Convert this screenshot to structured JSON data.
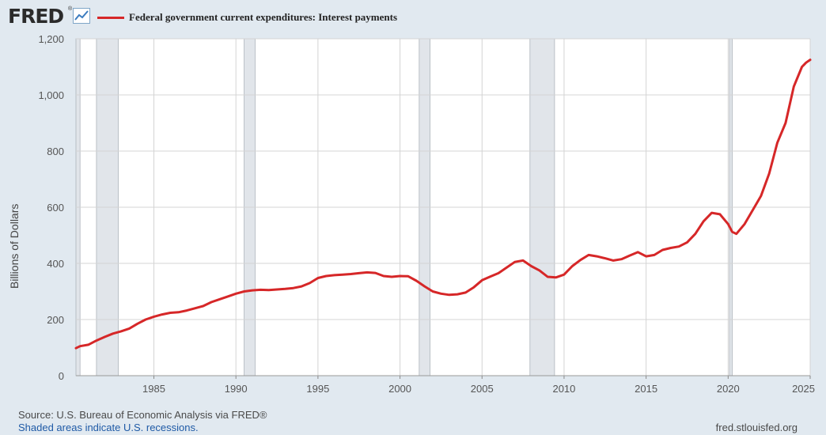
{
  "header": {
    "logo_text": "FRED",
    "logo_reg": "®",
    "logo_icon": "chart-line-icon",
    "series_color": "#d62728"
  },
  "footer": {
    "source": "Source: U.S. Bureau of Economic Analysis via FRED®",
    "note": "Shaded areas indicate U.S. recessions.",
    "site": "fred.stlouisfed.org"
  },
  "chart_data": {
    "type": "line",
    "ylabel": "Billions of Dollars",
    "ylim": [
      0,
      1200
    ],
    "xlim": [
      1980.25,
      2025.0
    ],
    "yticks": [
      0,
      200,
      400,
      600,
      800,
      1000,
      1200
    ],
    "ytick_labels": [
      "0",
      "200",
      "400",
      "600",
      "800",
      "1,000",
      "1,200"
    ],
    "xticks": [
      1985,
      1990,
      1995,
      2000,
      2005,
      2010,
      2015,
      2020,
      2025
    ],
    "xtick_labels": [
      "1985",
      "1990",
      "1995",
      "2000",
      "2005",
      "2010",
      "2015",
      "2020",
      "2025"
    ],
    "grid": true,
    "legend_position": "top-left",
    "recessions": [
      [
        1980.25,
        1980.5
      ],
      [
        1981.5,
        1982.83
      ],
      [
        1990.5,
        1991.17
      ],
      [
        2001.17,
        2001.83
      ],
      [
        2007.92,
        2009.42
      ],
      [
        2020.08,
        2020.25
      ]
    ],
    "series": [
      {
        "name": "Federal government current expenditures: Interest payments",
        "color": "#d62728",
        "x": [
          1980.25,
          1980.5,
          1981.0,
          1981.5,
          1982.0,
          1982.5,
          1983.0,
          1983.5,
          1984.0,
          1984.5,
          1985.0,
          1985.5,
          1986.0,
          1986.5,
          1987.0,
          1987.5,
          1988.0,
          1988.5,
          1989.0,
          1989.5,
          1990.0,
          1990.5,
          1991.0,
          1991.5,
          1992.0,
          1992.5,
          1993.0,
          1993.5,
          1994.0,
          1994.5,
          1995.0,
          1995.5,
          1996.0,
          1996.5,
          1997.0,
          1997.5,
          1998.0,
          1998.5,
          1999.0,
          1999.5,
          2000.0,
          2000.5,
          2001.0,
          2001.5,
          2002.0,
          2002.5,
          2003.0,
          2003.5,
          2004.0,
          2004.5,
          2005.0,
          2005.5,
          2006.0,
          2006.5,
          2007.0,
          2007.5,
          2008.0,
          2008.5,
          2009.0,
          2009.5,
          2010.0,
          2010.5,
          2011.0,
          2011.5,
          2012.0,
          2012.5,
          2013.0,
          2013.5,
          2014.0,
          2014.5,
          2015.0,
          2015.5,
          2016.0,
          2016.5,
          2017.0,
          2017.5,
          2018.0,
          2018.5,
          2019.0,
          2019.5,
          2020.0,
          2020.25,
          2020.5,
          2021.0,
          2021.5,
          2022.0,
          2022.5,
          2023.0,
          2023.5,
          2024.0,
          2024.5,
          2024.75,
          2025.0
        ],
        "values": [
          98,
          105,
          110,
          125,
          138,
          150,
          158,
          168,
          185,
          200,
          210,
          218,
          224,
          226,
          232,
          240,
          248,
          262,
          272,
          282,
          292,
          300,
          304,
          306,
          305,
          307,
          309,
          312,
          318,
          330,
          348,
          355,
          358,
          360,
          362,
          365,
          368,
          366,
          355,
          352,
          355,
          354,
          338,
          318,
          300,
          292,
          288,
          290,
          296,
          315,
          340,
          353,
          365,
          385,
          405,
          410,
          390,
          375,
          352,
          350,
          360,
          390,
          412,
          430,
          425,
          418,
          410,
          415,
          428,
          440,
          425,
          430,
          448,
          455,
          460,
          475,
          505,
          550,
          580,
          575,
          540,
          512,
          505,
          540,
          590,
          640,
          720,
          830,
          900,
          1030,
          1100,
          1115,
          1125
        ]
      }
    ]
  }
}
